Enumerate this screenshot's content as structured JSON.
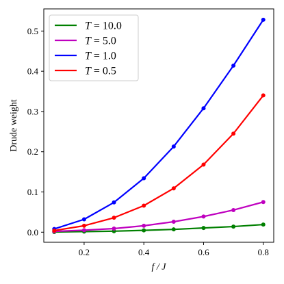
{
  "chart_data": {
    "type": "line",
    "xlabel": "f / J",
    "ylabel": "Drude weight",
    "xlim": [
      0.065,
      0.835
    ],
    "ylim": [
      -0.025,
      0.555
    ],
    "xticks": [
      0.2,
      0.4,
      0.6,
      0.8
    ],
    "yticks": [
      0.0,
      0.1,
      0.2,
      0.3,
      0.4,
      0.5
    ],
    "xtick_labels": [
      "0.2",
      "0.4",
      "0.6",
      "0.8"
    ],
    "ytick_labels": [
      "0.0",
      "0.1",
      "0.2",
      "0.3",
      "0.4",
      "0.5"
    ],
    "legend_placement": "top-left",
    "grid": false,
    "x": [
      0.1,
      0.2,
      0.3,
      0.4,
      0.5,
      0.6,
      0.7,
      0.8
    ],
    "series": [
      {
        "name": "T = 10.0",
        "legend_var": "T",
        "legend_value": "10.0",
        "color": "#008000",
        "values": [
          0.0005,
          0.0015,
          0.0025,
          0.0045,
          0.007,
          0.0105,
          0.014,
          0.019
        ]
      },
      {
        "name": "T = 5.0",
        "legend_var": "T",
        "legend_value": "5.0",
        "color": "#bf00bf",
        "values": [
          0.002,
          0.005,
          0.009,
          0.016,
          0.026,
          0.039,
          0.055,
          0.075
        ]
      },
      {
        "name": "T = 1.0",
        "legend_var": "T",
        "legend_value": "1.0",
        "color": "#0000ff",
        "values": [
          0.008,
          0.032,
          0.074,
          0.134,
          0.213,
          0.308,
          0.414,
          0.528
        ]
      },
      {
        "name": "T = 0.5",
        "legend_var": "T",
        "legend_value": "0.5",
        "color": "#ff0000",
        "values": [
          0.004,
          0.016,
          0.036,
          0.066,
          0.109,
          0.168,
          0.245,
          0.34
        ]
      }
    ]
  }
}
